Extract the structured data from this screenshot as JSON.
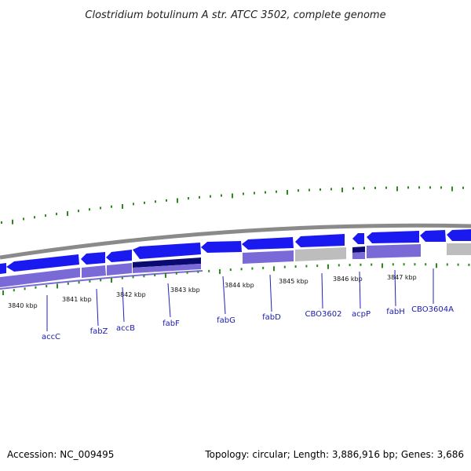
{
  "title": "Clostridium botulinum A str. ATCC 3502, complete genome",
  "accession_text": "Accession: NC_009495",
  "topology_text": "Topology: circular; Length: 3,886,916 bp; Genes: 3,686",
  "colors": {
    "gene_fwd": "#1a1af0",
    "gene_fwd_light": "#4d4dff",
    "gene_dark": "#0a0a70",
    "cds_band": "#7a6ad8",
    "cds_band_light": "#a89cf0",
    "gray_band": "#bdbdbd",
    "backbone": "#8a8a8a",
    "tick_green": "#2a8a1a",
    "label_blue": "#1a1ab0",
    "leader_line": "#2020c0"
  },
  "kbp_labels": [
    "3840 kbp",
    "3841 kbp",
    "3842 kbp",
    "3843 kbp",
    "3844 kbp",
    "3845 kbp",
    "3846 kbp",
    "3847 kbp"
  ],
  "gene_labels": [
    "accC",
    "fabZ",
    "accB",
    "fabF",
    "fabG",
    "fabD",
    "CBO3602",
    "acpP",
    "fabH",
    "CBO3604A"
  ]
}
